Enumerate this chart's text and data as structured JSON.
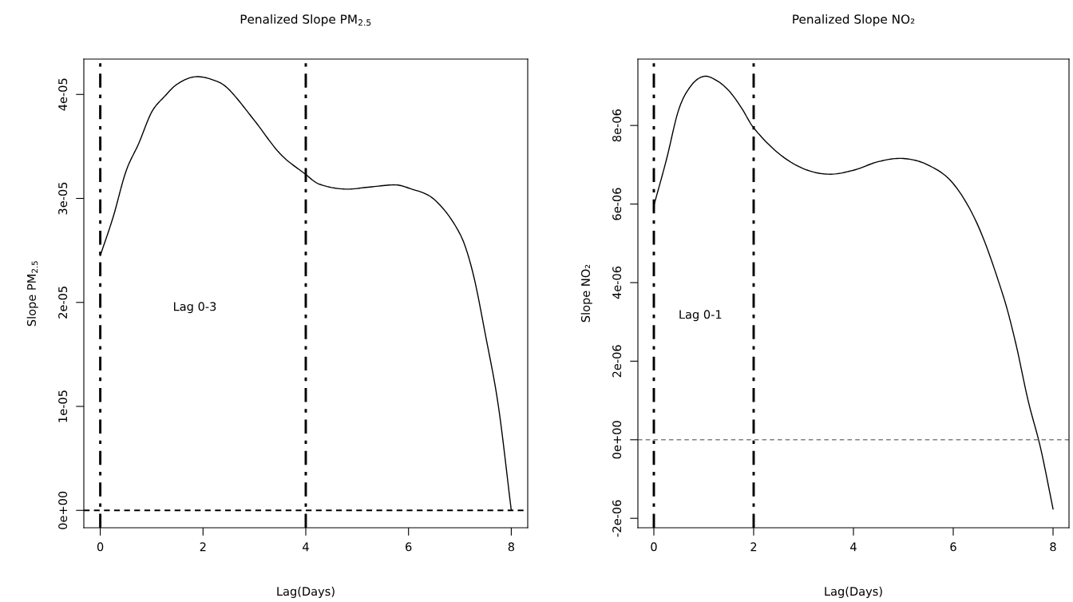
{
  "chart_data": [
    {
      "type": "line",
      "title": "Penalized Slope PM$_{2.5}$",
      "xlabel": "Lag(Days)",
      "ylabel": "Slope PM$_{2.5}$",
      "series": [
        {
          "color": "#000000",
          "x": [
            0,
            0.25,
            0.5,
            0.75,
            1.0,
            1.25,
            1.5,
            1.85,
            2.25,
            2.5,
            3.0,
            3.5,
            4.0,
            4.25,
            4.75,
            5.25,
            5.75,
            6.0,
            6.5,
            7.0,
            7.25,
            7.5,
            7.75,
            8.0
          ],
          "values": [
            2.45e-05,
            2.82e-05,
            3.26e-05,
            3.53e-05,
            3.83e-05,
            3.98e-05,
            4.1e-05,
            4.17e-05,
            4.13e-05,
            4.05e-05,
            3.75e-05,
            3.43e-05,
            3.23e-05,
            3.14e-05,
            3.09e-05,
            3.11e-05,
            3.13e-05,
            3.1e-05,
            2.99e-05,
            2.66e-05,
            2.29e-05,
            1.68e-05,
            1e-05,
            0.0
          ]
        }
      ],
      "xlim": [
        -0.32,
        8.32
      ],
      "xticks": [
        0,
        2,
        4,
        6,
        8
      ],
      "ylim": [
        -1.67e-06,
        4.34e-05
      ],
      "yticks": [
        {
          "value": 0,
          "label": "0e+00"
        },
        {
          "value": 1e-05,
          "label": "1e-05"
        },
        {
          "value": 2e-05,
          "label": "2e-05"
        },
        {
          "value": 3e-05,
          "label": "3e-05"
        },
        {
          "value": 4e-05,
          "label": "4e-05"
        }
      ],
      "ref_lines": [
        {
          "axis": "x",
          "value": 0,
          "color": "#000000",
          "line_style": "dashdot"
        },
        {
          "axis": "x",
          "value": 4,
          "color": "#000000",
          "line_style": "dashdot"
        },
        {
          "axis": "y",
          "value": 0,
          "color": "#000000",
          "line_style": "dashed"
        }
      ],
      "annotations": [
        "Lag 0-3"
      ],
      "grid": false,
      "legend": false
    },
    {
      "type": "line",
      "title": "Penalized Slope NO₂",
      "xlabel": "Lag(Days)",
      "ylabel": "Slope NO₂",
      "series": [
        {
          "color": "#000000",
          "x": [
            0,
            0.25,
            0.5,
            0.75,
            1.0,
            1.25,
            1.5,
            1.75,
            2.0,
            2.5,
            3.0,
            3.5,
            4.0,
            4.5,
            5.0,
            5.5,
            6.0,
            6.5,
            7.0,
            7.25,
            7.5,
            7.75,
            8.0
          ],
          "values": [
            5.96e-06,
            7.12e-06,
            8.41e-06,
            9.02e-06,
            9.25e-06,
            9.15e-06,
            8.89e-06,
            8.46e-06,
            7.94e-06,
            7.29e-06,
            6.9e-06,
            6.76e-06,
            6.86e-06,
            7.08e-06,
            7.16e-06,
            6.99e-06,
            6.52e-06,
            5.44e-06,
            3.67e-06,
            2.47e-06,
            1e-06,
            -2.1e-07,
            -1.76e-06
          ]
        }
      ],
      "xlim": [
        -0.32,
        8.32
      ],
      "xticks": [
        0,
        2,
        4,
        6,
        8
      ],
      "ylim": [
        -2.24e-06,
        9.69e-06
      ],
      "yticks": [
        {
          "value": -2e-06,
          "label": "-2e-06"
        },
        {
          "value": 0,
          "label": "0e+00"
        },
        {
          "value": 2e-06,
          "label": "2e-06"
        },
        {
          "value": 4e-06,
          "label": "4e-06"
        },
        {
          "value": 6e-06,
          "label": "6e-06"
        },
        {
          "value": 8e-06,
          "label": "8e-06"
        }
      ],
      "ref_lines": [
        {
          "axis": "x",
          "value": 0,
          "color": "#000000",
          "line_style": "dashdot"
        },
        {
          "axis": "x",
          "value": 2,
          "color": "#000000",
          "line_style": "dashdot"
        },
        {
          "axis": "y",
          "value": 0,
          "color": "#808080",
          "line_style": "dashed"
        }
      ],
      "annotations": [
        "Lag 0-1"
      ],
      "grid": false,
      "legend": false
    }
  ]
}
